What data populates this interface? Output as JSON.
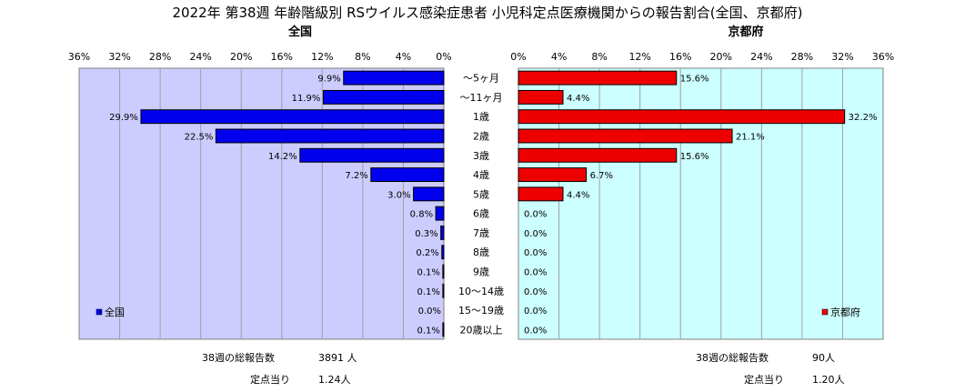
{
  "title": "2022年 第38週 年齢階級別 RSウイルス感染症患者 小児科定点医療機関からの報告割合(全国、京都府)",
  "colors": {
    "national": "#0000ee",
    "kyoto": "#ee0000",
    "plot_bg": "#ccccff",
    "plot_bg_right": "#ccffff"
  },
  "chart_data": [
    {
      "type": "bar",
      "subtitle": "全国",
      "categories": [
        "～5ヶ月",
        "～11ヶ月",
        "1歳",
        "2歳",
        "3歳",
        "4歳",
        "5歳",
        "6歳",
        "7歳",
        "8歳",
        "9歳",
        "10～14歳",
        "15～19歳",
        "20歳以上"
      ],
      "series": [
        {
          "name": "全国",
          "values": [
            9.9,
            11.9,
            29.9,
            22.5,
            14.2,
            7.2,
            3.0,
            0.8,
            0.3,
            0.2,
            0.1,
            0.1,
            0.0,
            0.1
          ],
          "labels": [
            "9.9%",
            "11.9%",
            "29.9%",
            "22.5%",
            "14.2%",
            "7.2%",
            "3.0%",
            "0.8%",
            "0.3%",
            "0.2%",
            "0.1%",
            "0.1%",
            "0.0%",
            "0.1%"
          ]
        }
      ],
      "xlim": [
        0,
        36
      ],
      "x_ticks": [
        "36%",
        "32%",
        "28%",
        "24%",
        "20%",
        "16%",
        "12%",
        "8%",
        "4%",
        "0%"
      ],
      "reversed": true,
      "legend": "bottom-left",
      "grid": true
    },
    {
      "type": "bar",
      "subtitle": "京都府",
      "categories": [
        "～5ヶ月",
        "～11ヶ月",
        "1歳",
        "2歳",
        "3歳",
        "4歳",
        "5歳",
        "6歳",
        "7歳",
        "8歳",
        "9歳",
        "10～14歳",
        "15～19歳",
        "20歳以上"
      ],
      "series": [
        {
          "name": "京都府",
          "values": [
            15.6,
            4.4,
            32.2,
            21.1,
            15.6,
            6.7,
            4.4,
            0.0,
            0.0,
            0.0,
            0.0,
            0.0,
            0.0,
            0.0
          ],
          "labels": [
            "15.6%",
            "4.4%",
            "32.2%",
            "21.1%",
            "15.6%",
            "6.7%",
            "4.4%",
            "0.0%",
            "0.0%",
            "0.0%",
            "0.0%",
            "0.0%",
            "0.0%",
            "0.0%"
          ]
        }
      ],
      "xlim": [
        0,
        36
      ],
      "x_ticks": [
        "0%",
        "4%",
        "8%",
        "12%",
        "16%",
        "20%",
        "24%",
        "28%",
        "32%",
        "36%"
      ],
      "reversed": false,
      "legend": "bottom-right",
      "grid": true
    }
  ],
  "footer": {
    "left": {
      "total_label": "38週の総報告数",
      "total_value": "3891 人",
      "per_label": "定点当り",
      "per_value": "1.24人"
    },
    "right": {
      "total_label": "38週の総報告数",
      "total_value": "90人",
      "per_label": "定点当り",
      "per_value": "1.20人"
    }
  }
}
